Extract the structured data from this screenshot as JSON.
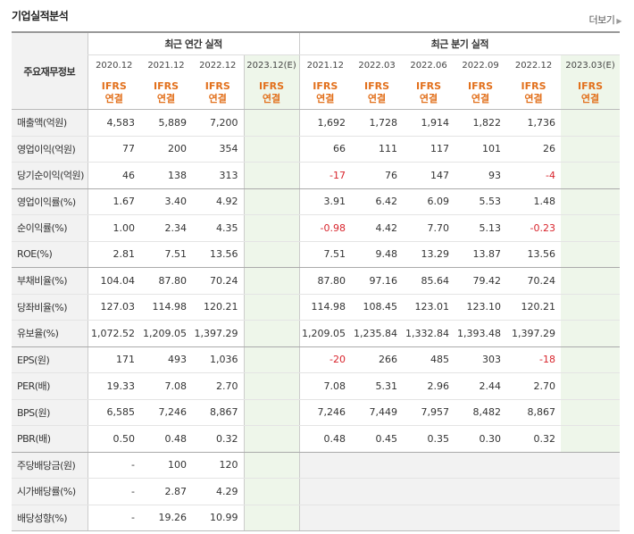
{
  "header": {
    "title": "기업실적분석",
    "more_label": "더보기"
  },
  "table": {
    "corner_label": "주요재무정보",
    "group_annual": "최근 연간 실적",
    "group_quarter": "최근 분기 실적",
    "periods": [
      "2020.12",
      "2021.12",
      "2022.12",
      "2023.12(E)",
      "2021.12",
      "2022.03",
      "2022.06",
      "2022.09",
      "2022.12",
      "2023.03(E)"
    ],
    "standard_top": "IFRS",
    "standard_bottom": "연결",
    "rows": [
      {
        "label": "매출액(억원)",
        "values": [
          "4,583",
          "5,889",
          "7,200",
          "",
          "1,692",
          "1,728",
          "1,914",
          "1,822",
          "1,736",
          ""
        ]
      },
      {
        "label": "영업이익(억원)",
        "values": [
          "77",
          "200",
          "354",
          "",
          "66",
          "111",
          "117",
          "101",
          "26",
          ""
        ]
      },
      {
        "label": "당기순이익(억원)",
        "values": [
          "46",
          "138",
          "313",
          "",
          "-17",
          "76",
          "147",
          "93",
          "-4",
          ""
        ]
      },
      {
        "label": "영업이익률(%)",
        "values": [
          "1.67",
          "3.40",
          "4.92",
          "",
          "3.91",
          "6.42",
          "6.09",
          "5.53",
          "1.48",
          ""
        ]
      },
      {
        "label": "순이익률(%)",
        "values": [
          "1.00",
          "2.34",
          "4.35",
          "",
          "-0.98",
          "4.42",
          "7.70",
          "5.13",
          "-0.23",
          ""
        ]
      },
      {
        "label": "ROE(%)",
        "values": [
          "2.81",
          "7.51",
          "13.56",
          "",
          "7.51",
          "9.48",
          "13.29",
          "13.87",
          "13.56",
          ""
        ]
      },
      {
        "label": "부채비율(%)",
        "values": [
          "104.04",
          "87.80",
          "70.24",
          "",
          "87.80",
          "97.16",
          "85.64",
          "79.42",
          "70.24",
          ""
        ]
      },
      {
        "label": "당좌비율(%)",
        "values": [
          "127.03",
          "114.98",
          "120.21",
          "",
          "114.98",
          "108.45",
          "123.01",
          "123.10",
          "120.21",
          ""
        ]
      },
      {
        "label": "유보율(%)",
        "values": [
          "1,072.52",
          "1,209.05",
          "1,397.29",
          "",
          "1,209.05",
          "1,235.84",
          "1,332.84",
          "1,393.48",
          "1,397.29",
          ""
        ]
      },
      {
        "label": "EPS(원)",
        "values": [
          "171",
          "493",
          "1,036",
          "",
          "-20",
          "266",
          "485",
          "303",
          "-18",
          ""
        ]
      },
      {
        "label": "PER(배)",
        "values": [
          "19.33",
          "7.08",
          "2.70",
          "",
          "7.08",
          "5.31",
          "2.96",
          "2.44",
          "2.70",
          ""
        ]
      },
      {
        "label": "BPS(원)",
        "values": [
          "6,585",
          "7,246",
          "8,867",
          "",
          "7,246",
          "7,449",
          "7,957",
          "8,482",
          "8,867",
          ""
        ]
      },
      {
        "label": "PBR(배)",
        "values": [
          "0.50",
          "0.48",
          "0.32",
          "",
          "0.48",
          "0.45",
          "0.35",
          "0.30",
          "0.32",
          ""
        ]
      },
      {
        "label": "주당배당금(원)",
        "values": [
          "-",
          "100",
          "120",
          "",
          "",
          "",
          "",
          "",
          "",
          ""
        ]
      },
      {
        "label": "시가배당률(%)",
        "values": [
          "-",
          "2.87",
          "4.29",
          "",
          "",
          "",
          "",
          "",
          "",
          ""
        ]
      },
      {
        "label": "배당성향(%)",
        "values": [
          "-",
          "19.26",
          "10.99",
          "",
          "",
          "",
          "",
          "",
          "",
          ""
        ]
      }
    ]
  },
  "colors": {
    "ifrs": "#e2701c",
    "negative": "#d8242c",
    "estimate_bg": "#eef6ea",
    "label_bg": "#f2f2f2"
  }
}
